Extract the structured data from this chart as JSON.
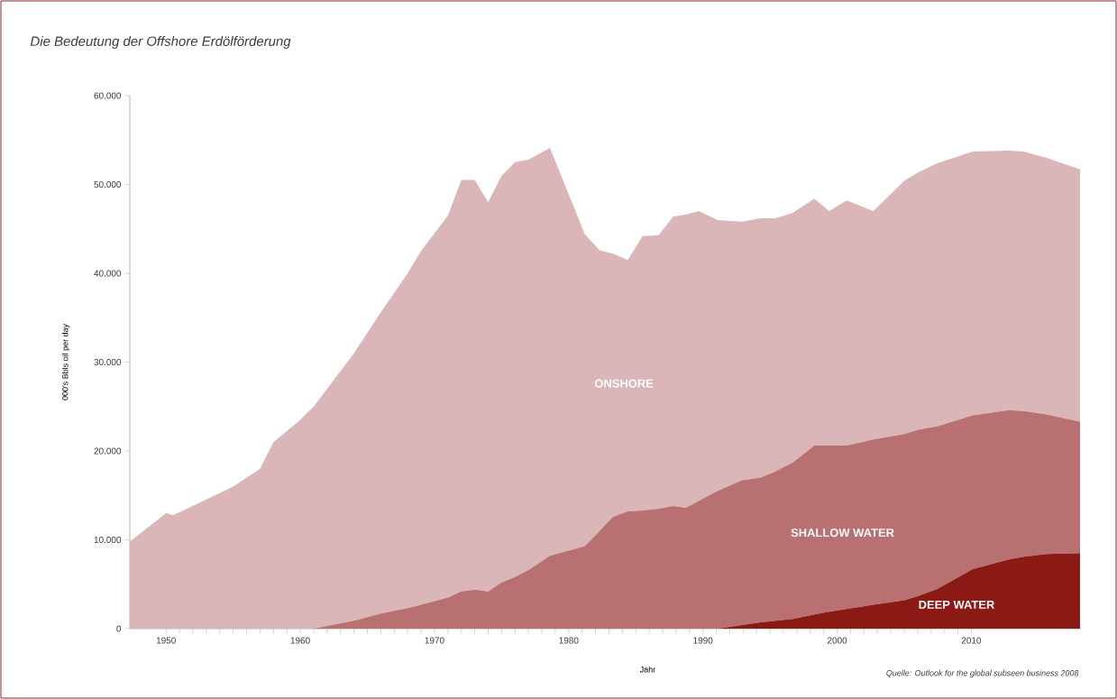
{
  "chart_data": {
    "type": "area",
    "title": "Die Bedeutung der Offshore Erdölförderung",
    "xlabel": "Jahr",
    "ylabel": "000's Bbls oil per day",
    "annotations": [
      "Quelle: Outlook for the global subseen business 2008"
    ],
    "stacked": true,
    "x": [
      1947.3,
      1950,
      1950.5,
      1951,
      1955,
      1957,
      1958,
      1960,
      1961,
      1962,
      1964,
      1966,
      1968,
      1969,
      1971,
      1972,
      1973,
      1974,
      1975,
      1976,
      1977,
      1978.6,
      1981.2,
      1982.3,
      1983.3,
      1984.4,
      1985.5,
      1986.7,
      1987.8,
      1988.7,
      1989.7,
      1991.1,
      1992.9,
      1994.3,
      1995.4,
      1996.7,
      1998.3,
      1999.4,
      2000.7,
      2002.7,
      2005,
      2006.1,
      2007.5,
      2010.1,
      2012.8,
      2013.9,
      2015.6,
      2018.1
    ],
    "series": [
      {
        "name": "DEEP WATER",
        "color": "#8b1a14",
        "values": [
          0,
          0,
          0,
          0,
          0,
          0,
          0,
          0,
          0,
          0,
          0,
          0,
          0,
          0,
          0,
          0,
          0,
          0,
          0,
          0,
          0,
          0,
          0,
          0,
          0,
          0,
          0,
          0,
          0,
          0,
          0,
          0,
          400,
          700,
          900,
          1100,
          1600,
          1900,
          2200,
          2700,
          3200,
          3700,
          4500,
          6700,
          7800,
          8100,
          8400,
          8500
        ]
      },
      {
        "name": "SHALLOW WATER",
        "color": "#b87070",
        "values": [
          0,
          0,
          0,
          0,
          0,
          0,
          0,
          0,
          0,
          300,
          900,
          1700,
          2300,
          2700,
          3500,
          4200,
          4400,
          4200,
          5200,
          5800,
          6600,
          8200,
          9300,
          11000,
          12600,
          13200,
          13300,
          13500,
          13800,
          13600,
          14400,
          15500,
          16300,
          16300,
          16800,
          17600,
          19000,
          18700,
          18400,
          18600,
          18700,
          18700,
          18300,
          17300,
          16800,
          16400,
          15700,
          14800
        ]
      },
      {
        "name": "ONSHORE",
        "color": "#dbb6b8",
        "values": [
          9800,
          13000,
          12800,
          13100,
          16000,
          18000,
          21000,
          23500,
          25000,
          26700,
          30100,
          33900,
          37700,
          39800,
          43000,
          46300,
          46100,
          43800,
          45800,
          46700,
          46200,
          45900,
          35100,
          31600,
          29600,
          28300,
          30900,
          30800,
          32600,
          33000,
          32600,
          30500,
          29100,
          29200,
          28500,
          28100,
          27800,
          26400,
          27600,
          25700,
          28500,
          29000,
          29600,
          29700,
          29200,
          29200,
          28900,
          28400
        ]
      }
    ],
    "xlim": [
      1947.3,
      2018.1
    ],
    "ylim": [
      0,
      60000
    ],
    "xticks": [
      1950,
      1960,
      1970,
      1980,
      1990,
      2000,
      2010
    ],
    "yticks": [
      {
        "value": 0,
        "label": "0"
      },
      {
        "value": 10000,
        "label": "10.000"
      },
      {
        "value": 20000,
        "label": "20.000"
      },
      {
        "value": 30000,
        "label": "30.000"
      },
      {
        "value": 40000,
        "label": "40.000"
      },
      {
        "value": 50000,
        "label": "50.000"
      },
      {
        "value": 60000,
        "label": "60.000"
      }
    ]
  }
}
